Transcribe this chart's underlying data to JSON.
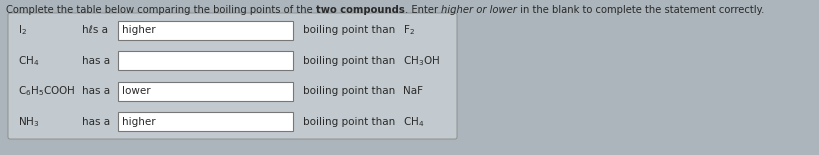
{
  "title_part1": "Complete the table below comparing the boiling points of the ",
  "title_bold": "two compounds",
  "title_part2": ". Enter ",
  "title_italic": "higher or lower",
  "title_part3": " in the blank to complete the statement correctly.",
  "bg_color": "#abb5bb",
  "table_bg": "#c2cacf",
  "box_bg": "#ffffff",
  "text_color": "#2a2a2a",
  "rows": [
    {
      "compound1": "I$_2$",
      "prefix": "hℓs a",
      "answer": "higher",
      "suffix": "boiling point than",
      "compound2": "F$_2$"
    },
    {
      "compound1": "CH$_4$",
      "prefix": "has a",
      "answer": "",
      "suffix": "boiling point than",
      "compound2": "CH$_3$OH"
    },
    {
      "compound1": "C$_6$H$_5$COOH",
      "prefix": "has a",
      "answer": "lower",
      "suffix": "boiling point than",
      "compound2": "NaF"
    },
    {
      "compound1": "NH$_3$",
      "prefix": "has a",
      "answer": "higher",
      "suffix": "boiling point than",
      "compound2": "CH$_4$"
    }
  ],
  "fig_w": 8.19,
  "fig_h": 1.55,
  "dpi": 100
}
